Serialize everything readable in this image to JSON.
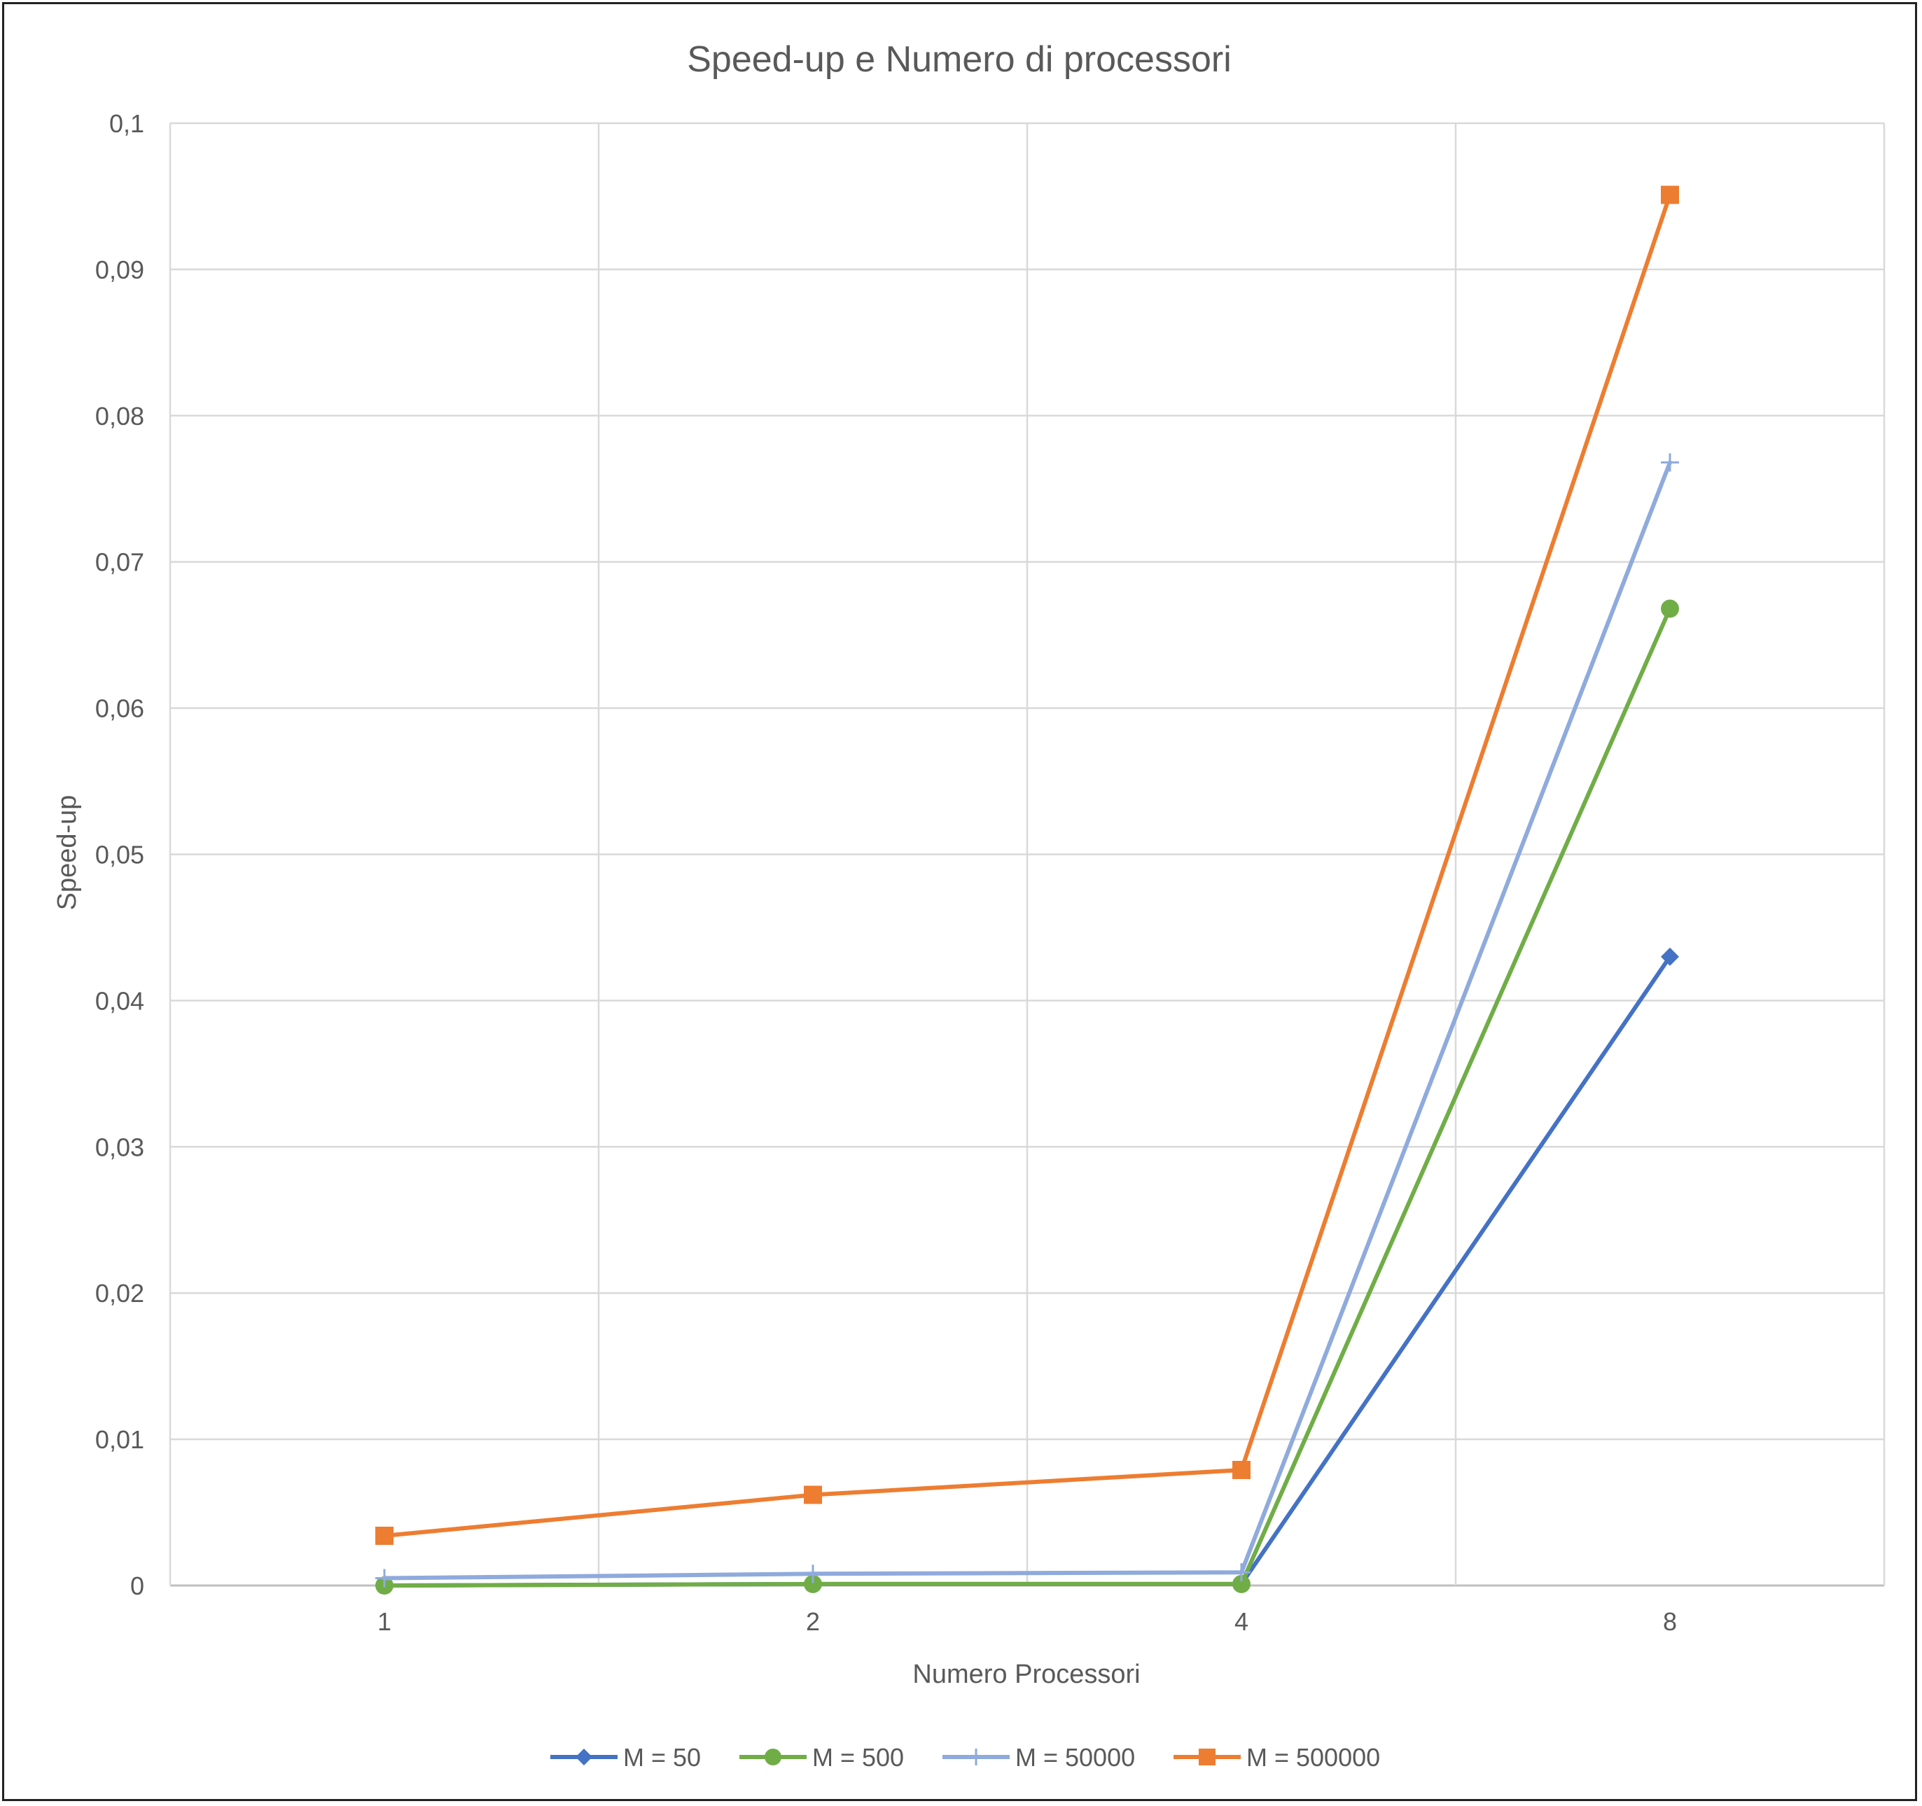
{
  "chart_data": {
    "type": "line",
    "title": "Speed-up e Numero di processori",
    "xlabel": "Numero Processori",
    "ylabel": "Speed-up",
    "categories": [
      "1",
      "2",
      "4",
      "8"
    ],
    "yticks": [
      "0",
      "0,01",
      "0,02",
      "0,03",
      "0,04",
      "0,05",
      "0,06",
      "0,07",
      "0,08",
      "0,09",
      "0,1"
    ],
    "ylim": [
      0,
      0.1
    ],
    "grid": true,
    "legend_position": "bottom",
    "series": [
      {
        "name": "M = 50",
        "color": "#4472C4",
        "marker": "diamond",
        "values": [
          0.0,
          0.0001,
          0.0001,
          0.043
        ]
      },
      {
        "name": "M = 500",
        "color": "#70AD47",
        "marker": "circle",
        "values": [
          0.0,
          0.0001,
          0.0001,
          0.0668
        ]
      },
      {
        "name": "M = 50000",
        "color": "#8FAADC",
        "marker": "plus",
        "values": [
          0.0005,
          0.0008,
          0.0009,
          0.0768
        ]
      },
      {
        "name": "M = 500000",
        "color": "#ED7D31",
        "marker": "square",
        "values": [
          0.0034,
          0.0062,
          0.0079,
          0.0951
        ]
      }
    ]
  }
}
